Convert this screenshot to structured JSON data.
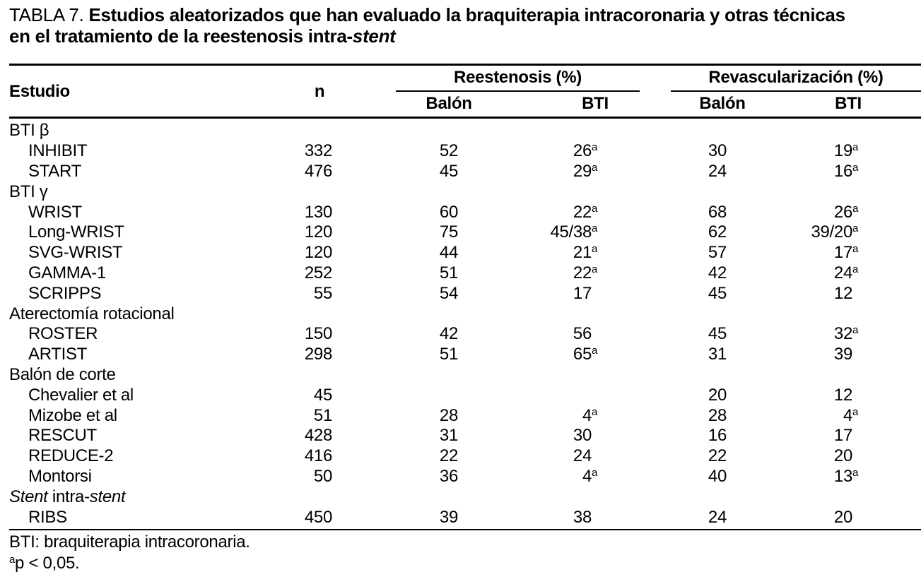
{
  "colors": {
    "text": "#000000",
    "background": "#ffffff"
  },
  "title": {
    "tag": "TABLA 7.",
    "line1": "Estudios aleatorizados que han evaluado la braquiterapia intracoronaria y otras técnicas",
    "line2_regular": "en el tratamiento de la reestenosis intra-",
    "line2_italic": "stent"
  },
  "header": {
    "estudio": "Estudio",
    "n": "n",
    "groups": [
      {
        "label": "Reestenosis (%)",
        "sub": [
          "Balón",
          "BTI"
        ]
      },
      {
        "label": "Revascularización (%)",
        "sub": [
          "Balón",
          "BTI"
        ]
      }
    ]
  },
  "table": {
    "rows": [
      {
        "type": "group",
        "label": "BTI β"
      },
      {
        "type": "data",
        "label": "INHIBIT",
        "n": "332",
        "reest_balon": "52",
        "reest_bti": "26",
        "reest_bti_sup": "a",
        "revasc_balon": "30",
        "revasc_bti": "19",
        "revasc_bti_sup": "a"
      },
      {
        "type": "data",
        "label": "START",
        "n": "476",
        "reest_balon": "45",
        "reest_bti": "29",
        "reest_bti_sup": "a",
        "revasc_balon": "24",
        "revasc_bti": "16",
        "revasc_bti_sup": "a"
      },
      {
        "type": "group",
        "label": "BTI γ"
      },
      {
        "type": "data",
        "label": "WRIST",
        "n": "130",
        "reest_balon": "60",
        "reest_bti": "22",
        "reest_bti_sup": "a",
        "revasc_balon": "68",
        "revasc_bti": "26",
        "revasc_bti_sup": "a"
      },
      {
        "type": "data",
        "label": "Long-WRIST",
        "n": "120",
        "reest_balon": "75",
        "reest_bti": "45/38",
        "reest_bti_sup": "a",
        "revasc_balon": "62",
        "revasc_bti": "39/20",
        "revasc_bti_sup": "a"
      },
      {
        "type": "data",
        "label": "SVG-WRIST",
        "n": "120",
        "reest_balon": "44",
        "reest_bti": "21",
        "reest_bti_sup": "a",
        "revasc_balon": "57",
        "revasc_bti": "17",
        "revasc_bti_sup": "a"
      },
      {
        "type": "data",
        "label": "GAMMA-1",
        "n": "252",
        "reest_balon": "51",
        "reest_bti": "22",
        "reest_bti_sup": "a",
        "revasc_balon": "42",
        "revasc_bti": "24",
        "revasc_bti_sup": "a"
      },
      {
        "type": "data",
        "label": "SCRIPPS",
        "n": "55",
        "reest_balon": "54",
        "reest_bti": "17",
        "reest_bti_sup": "",
        "revasc_balon": "45",
        "revasc_bti": "12",
        "revasc_bti_sup": ""
      },
      {
        "type": "group",
        "label": "Aterectomía rotacional"
      },
      {
        "type": "data",
        "label": "ROSTER",
        "n": "150",
        "reest_balon": "42",
        "reest_bti": "56",
        "reest_bti_sup": "",
        "revasc_balon": "45",
        "revasc_bti": "32",
        "revasc_bti_sup": "a"
      },
      {
        "type": "data",
        "label": "ARTIST",
        "n": "298",
        "reest_balon": "51",
        "reest_bti": "65",
        "reest_bti_sup": "a",
        "revasc_balon": "31",
        "revasc_bti": "39",
        "revasc_bti_sup": ""
      },
      {
        "type": "group",
        "label": "Balón de corte"
      },
      {
        "type": "data",
        "label": "Chevalier et al",
        "n": "45",
        "reest_balon": "",
        "reest_bti": "",
        "reest_bti_sup": "",
        "revasc_balon": "20",
        "revasc_bti": "12",
        "revasc_bti_sup": ""
      },
      {
        "type": "data",
        "label": "Mizobe et al",
        "n": "51",
        "reest_balon": "28",
        "reest_bti": "4",
        "reest_bti_sup": "a",
        "revasc_balon": "28",
        "revasc_bti": "4",
        "revasc_bti_sup": "a"
      },
      {
        "type": "data",
        "label": "RESCUT",
        "n": "428",
        "reest_balon": "31",
        "reest_bti": "30",
        "reest_bti_sup": "",
        "revasc_balon": "16",
        "revasc_bti": "17",
        "revasc_bti_sup": ""
      },
      {
        "type": "data",
        "label": "REDUCE-2",
        "n": "416",
        "reest_balon": "22",
        "reest_bti": "24",
        "reest_bti_sup": "",
        "revasc_balon": "22",
        "revasc_bti": "20",
        "revasc_bti_sup": ""
      },
      {
        "type": "data",
        "label": "Montorsi",
        "n": "50",
        "reest_balon": "36",
        "reest_bti": "4",
        "reest_bti_sup": "a",
        "revasc_balon": "40",
        "revasc_bti": "13",
        "revasc_bti_sup": "a"
      },
      {
        "type": "group",
        "label": "Stent intra-stent",
        "label_segments": [
          {
            "t": "Stent",
            "italic": true
          },
          {
            "t": " intra-",
            "italic": false
          },
          {
            "t": "stent",
            "italic": true
          }
        ]
      },
      {
        "type": "data",
        "label": "RIBS",
        "n": "450",
        "reest_balon": "39",
        "reest_bti": "38",
        "reest_bti_sup": "",
        "revasc_balon": "24",
        "revasc_bti": "20",
        "revasc_bti_sup": ""
      }
    ]
  },
  "footnotes": [
    {
      "sup": "",
      "text": "BTI: braquiterapia intracoronaria."
    },
    {
      "sup": "a",
      "text": "p < 0,05."
    }
  ]
}
